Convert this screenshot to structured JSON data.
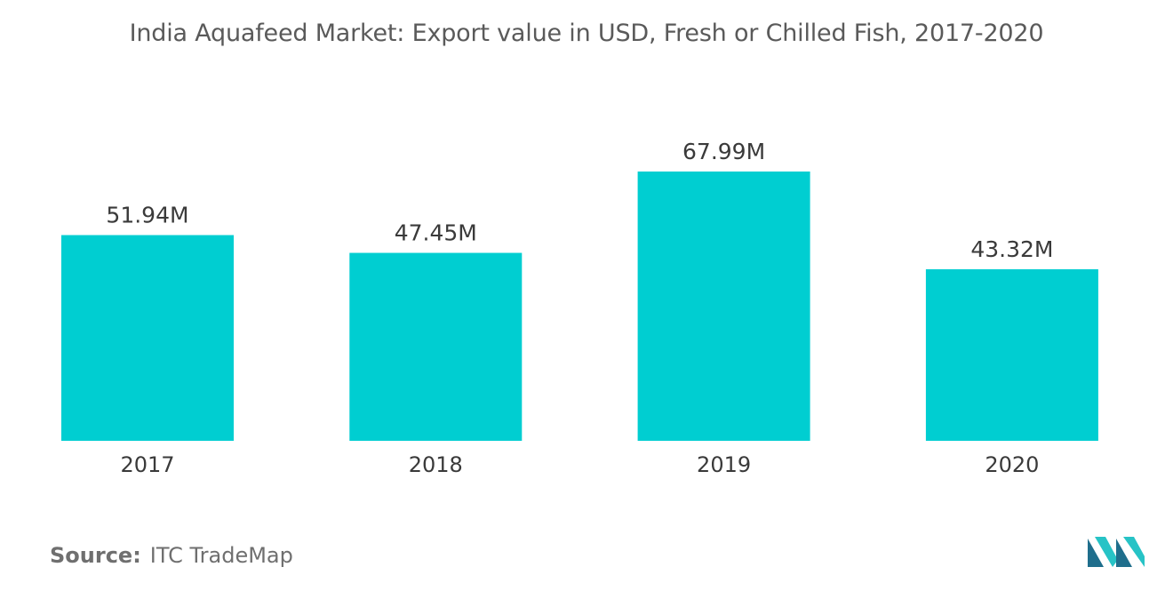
{
  "chart_data": {
    "type": "bar",
    "title": "India Aquafeed Market: Export value in USD, Fresh or Chilled Fish, 2017-2020",
    "categories": [
      "2017",
      "2018",
      "2019",
      "2020"
    ],
    "values": [
      51.94,
      47.45,
      67.99,
      43.32
    ],
    "data_labels": [
      "51.94M",
      "47.45M",
      "67.99M",
      "43.32M"
    ],
    "ylim": [
      0,
      80
    ],
    "grid": false,
    "bar_color": "#00ced1"
  },
  "source": {
    "label": "Source:",
    "text": "ITC TradeMap"
  },
  "logo": {
    "icon": "mordor-intelligence-logo",
    "color_dark": "#1f6e8c",
    "color_light": "#27c3c6"
  }
}
